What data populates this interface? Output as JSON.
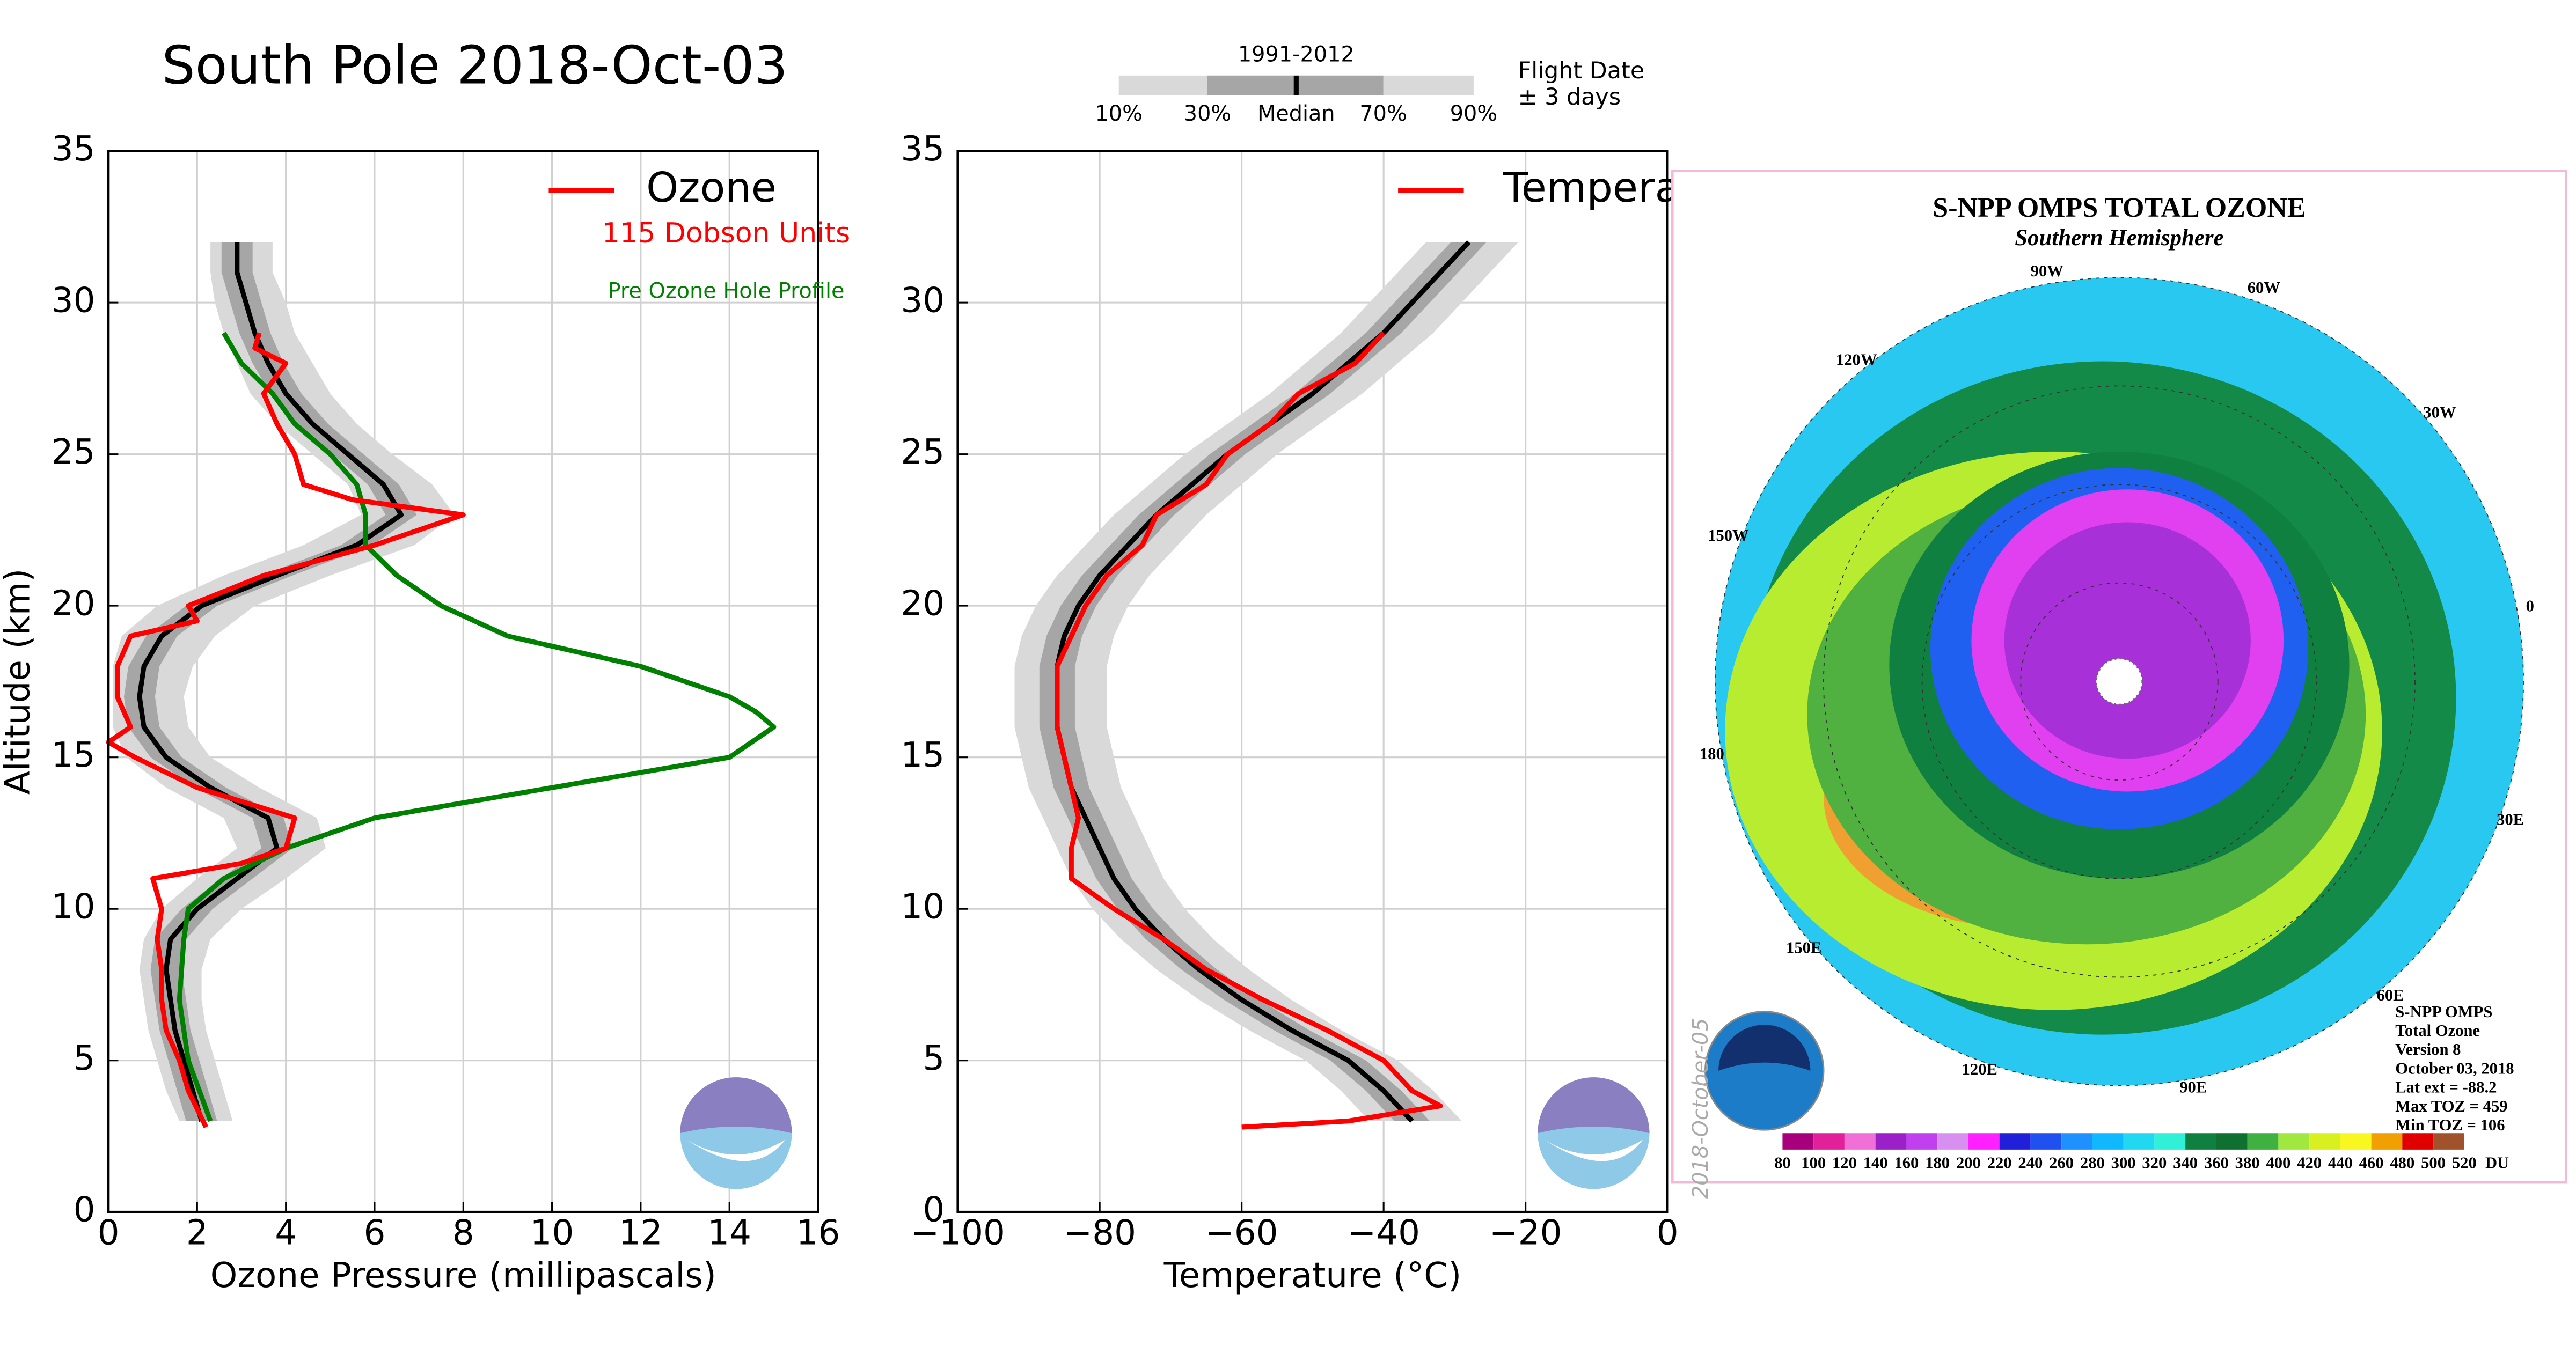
{
  "legend": {
    "period": "1991-2012",
    "percentiles": [
      "10%",
      "30%",
      "Median",
      "70%",
      "90%"
    ],
    "note": [
      "Flight Date",
      "± 3 days"
    ],
    "outer_color": "#d9d9d9",
    "inner_color": "#a6a6a6",
    "median_color": "#000000"
  },
  "chart_data": [
    {
      "type": "line",
      "title": "South Pole 2018-Oct-03",
      "xlabel": "Ozone Pressure (millipascals)",
      "ylabel": "Altitude (km)",
      "xlim": [
        0,
        16
      ],
      "ylim": [
        0,
        35
      ],
      "xticks": [
        0,
        2,
        4,
        6,
        8,
        10,
        12,
        14,
        16
      ],
      "yticks": [
        0,
        5,
        10,
        15,
        20,
        25,
        30,
        35
      ],
      "grid": true,
      "legend_position": "upper right",
      "annotation": {
        "text": "115 Dobson Units",
        "color": "#ff0000"
      },
      "series": [
        {
          "name": "Ozone",
          "color": "#ff0000",
          "x": [
            2.2,
            1.8,
            1.6,
            1.3,
            1.2,
            1.2,
            1.1,
            1.2,
            1.0,
            3.0,
            4.0,
            4.2,
            2.0,
            0.6,
            0.0,
            0.5,
            0.2,
            0.2,
            0.5,
            2.0,
            1.8,
            3.5,
            6.0,
            7.0,
            8.0,
            5.5,
            4.4,
            4.2,
            3.8,
            3.5,
            4.0,
            3.3,
            3.4
          ],
          "y": [
            2.8,
            4,
            5,
            6,
            7,
            8,
            9,
            10,
            11,
            11.5,
            12,
            13,
            14,
            15,
            15.5,
            16,
            17,
            18,
            19,
            19.5,
            20,
            21,
            22,
            22.5,
            23,
            23.5,
            24,
            25,
            26,
            27,
            28,
            28.5,
            29
          ]
        },
        {
          "name": "Pre Ozone Hole Profile",
          "color": "#008000",
          "x": [
            2.3,
            1.8,
            1.6,
            1.7,
            1.8,
            2.6,
            4.0,
            6.0,
            10.0,
            14.0,
            14.5,
            15.0,
            14.6,
            14.0,
            12.0,
            9.0,
            7.5,
            6.5,
            5.8,
            5.8,
            5.6,
            5.0,
            4.2,
            3.7,
            3.0,
            2.6
          ],
          "y": [
            3,
            5,
            7,
            9,
            10,
            11,
            12,
            13,
            14,
            15,
            15.5,
            16,
            16.5,
            17,
            18,
            19,
            20,
            21,
            22,
            23,
            24,
            25,
            26,
            27,
            28,
            29
          ]
        }
      ],
      "climatology": {
        "y": [
          3,
          4,
          5,
          6,
          7,
          8,
          9,
          10,
          11,
          12,
          13,
          14,
          15,
          16,
          17,
          18,
          19,
          20,
          21,
          22,
          23,
          24,
          25,
          26,
          27,
          28,
          29,
          30,
          31,
          32
        ],
        "p10": [
          1.6,
          1.3,
          1.1,
          0.9,
          0.8,
          0.7,
          0.8,
          1.2,
          2.0,
          2.9,
          2.6,
          1.3,
          0.4,
          0.1,
          0.1,
          0.1,
          0.3,
          1.1,
          2.6,
          4.4,
          5.7,
          5.4,
          4.6,
          3.8,
          3.2,
          2.9,
          2.6,
          2.4,
          2.3,
          2.3
        ],
        "p30": [
          1.75,
          1.55,
          1.35,
          1.15,
          1.05,
          0.95,
          1.05,
          1.65,
          2.55,
          3.45,
          3.25,
          1.95,
          0.95,
          0.45,
          0.35,
          0.45,
          0.85,
          1.75,
          3.45,
          5.25,
          6.25,
          5.85,
          5.05,
          4.25,
          3.65,
          3.25,
          2.95,
          2.75,
          2.55,
          2.55
        ],
        "median": [
          2.1,
          1.9,
          1.7,
          1.5,
          1.4,
          1.3,
          1.4,
          2.0,
          2.9,
          3.8,
          3.6,
          2.3,
          1.3,
          0.8,
          0.7,
          0.8,
          1.2,
          2.1,
          3.8,
          5.6,
          6.6,
          6.2,
          5.4,
          4.6,
          4.0,
          3.6,
          3.3,
          3.1,
          2.9,
          2.9
        ],
        "p70": [
          2.45,
          2.25,
          2.05,
          1.85,
          1.75,
          1.65,
          1.75,
          2.35,
          3.25,
          4.15,
          3.95,
          2.65,
          1.65,
          1.15,
          1.05,
          1.15,
          1.55,
          2.45,
          4.15,
          5.95,
          6.95,
          6.55,
          5.75,
          4.95,
          4.35,
          3.95,
          3.65,
          3.45,
          3.25,
          3.25
        ],
        "p90": [
          2.8,
          2.6,
          2.4,
          2.2,
          2.1,
          2.1,
          2.3,
          3.0,
          4.0,
          4.9,
          4.7,
          3.4,
          2.3,
          1.8,
          1.7,
          1.9,
          2.4,
          3.3,
          5.0,
          6.9,
          7.8,
          7.3,
          6.4,
          5.6,
          5.0,
          4.6,
          4.2,
          4.0,
          3.7,
          3.7
        ]
      }
    },
    {
      "type": "line",
      "xlabel": "Temperature (°C)",
      "xlim": [
        -100,
        0
      ],
      "ylim": [
        0,
        35
      ],
      "xticks": [
        {
          "value": -100,
          "label": "−100"
        },
        {
          "value": -80,
          "label": "−80"
        },
        {
          "value": -60,
          "label": "−60"
        },
        {
          "value": -40,
          "label": "−40"
        },
        {
          "value": -20,
          "label": "−20"
        },
        0
      ],
      "yticks": [
        0,
        5,
        10,
        15,
        20,
        25,
        30,
        35
      ],
      "grid": true,
      "legend_position": "upper right",
      "series": [
        {
          "name": "Temperature",
          "color": "#ff0000",
          "x": [
            -60,
            -45,
            -32,
            -36,
            -40,
            -48,
            -57,
            -65,
            -71,
            -78,
            -84,
            -84,
            -83,
            -84,
            -85,
            -86,
            -86,
            -86,
            -84,
            -82,
            -79,
            -74,
            -72,
            -65,
            -62,
            -56,
            -52,
            -44,
            -40
          ],
          "y": [
            2.8,
            3,
            3.5,
            4,
            5,
            6,
            7,
            8,
            9,
            10,
            11,
            12,
            13,
            14,
            15,
            16,
            17,
            18,
            19,
            20,
            21,
            22,
            23,
            24,
            25,
            26,
            27,
            28,
            29
          ]
        }
      ],
      "climatology": {
        "y": [
          3,
          4,
          5,
          6,
          7,
          8,
          9,
          10,
          11,
          12,
          13,
          14,
          15,
          16,
          17,
          18,
          19,
          20,
          21,
          22,
          23,
          24,
          25,
          26,
          27,
          28,
          29,
          30,
          31,
          32
        ],
        "p10": [
          -42,
          -46,
          -51,
          -59,
          -66,
          -72,
          -77,
          -81,
          -84,
          -86,
          -88,
          -90,
          -91,
          -92,
          -92,
          -92,
          -91,
          -89,
          -86,
          -82,
          -78,
          -73,
          -68,
          -62,
          -56,
          -51,
          -46,
          -42,
          -38,
          -34
        ],
        "p30": [
          -38.5,
          -42.5,
          -47.5,
          -55.5,
          -62.5,
          -68.5,
          -73.5,
          -77.5,
          -80.5,
          -82.5,
          -84.5,
          -86.5,
          -87.5,
          -88.5,
          -88.5,
          -88.5,
          -87.5,
          -85.5,
          -82.5,
          -78.5,
          -74.5,
          -69.5,
          -64.5,
          -58.5,
          -52.5,
          -47.5,
          -42.5,
          -38.5,
          -34.5,
          -30.5
        ],
        "median": [
          -36,
          -40,
          -45,
          -53,
          -60,
          -66,
          -71,
          -75,
          -78,
          -80,
          -82,
          -84,
          -85,
          -86,
          -86,
          -86,
          -85,
          -83,
          -80,
          -76,
          -72,
          -67,
          -62,
          -56,
          -50,
          -45,
          -40,
          -36,
          -32,
          -28
        ],
        "p70": [
          -33.5,
          -37.5,
          -42.5,
          -50.5,
          -57.5,
          -63.5,
          -68.5,
          -72.5,
          -75.5,
          -77.5,
          -79.5,
          -81.5,
          -82.5,
          -83.5,
          -83.5,
          -83.5,
          -82.5,
          -80.5,
          -77.5,
          -73.5,
          -69.5,
          -64.5,
          -59.5,
          -53.5,
          -47.5,
          -42.5,
          -37.5,
          -33.5,
          -29.5,
          -25.5
        ],
        "p90": [
          -29,
          -33,
          -38,
          -46,
          -53,
          -59,
          -64,
          -68,
          -71,
          -73,
          -75,
          -77,
          -78,
          -79,
          -79,
          -79,
          -78,
          -76,
          -73,
          -69,
          -65,
          -60,
          -55,
          -49,
          -43,
          -38,
          -33,
          -29,
          -25,
          -21
        ]
      }
    },
    {
      "type": "map",
      "title": "S-NPP OMPS TOTAL OZONE",
      "subtitle": "Southern Hemisphere",
      "longitude_labels": [
        "90W",
        "60W",
        "120W",
        "30W",
        "150W",
        "0",
        "180",
        "30E",
        "150E",
        "60E",
        "120E",
        "90E"
      ],
      "info": [
        "S-NPP OMPS",
        "Total Ozone",
        "Version 8",
        "October 03, 2018",
        "Lat ext = -88.2",
        "Max TOZ = 459",
        "Min TOZ = 106"
      ],
      "stamp": "2018-October-05",
      "colorbar": {
        "unit": "DU",
        "ticks": [
          80,
          100,
          120,
          140,
          160,
          180,
          200,
          220,
          240,
          260,
          280,
          300,
          320,
          340,
          360,
          380,
          400,
          420,
          440,
          460,
          480,
          500,
          520
        ],
        "colors": [
          "#a8007d",
          "#e0219a",
          "#f070d8",
          "#9a20c8",
          "#c040f0",
          "#d890f0",
          "#ff20ff",
          "#2020d8",
          "#2050f0",
          "#1e90ff",
          "#10b8ff",
          "#20d8f0",
          "#30f0d8",
          "#108040",
          "#107030",
          "#40b040",
          "#a0e840",
          "#d8f020",
          "#f8f820",
          "#f0a000",
          "#e00000",
          "#a0522d"
        ]
      }
    }
  ]
}
